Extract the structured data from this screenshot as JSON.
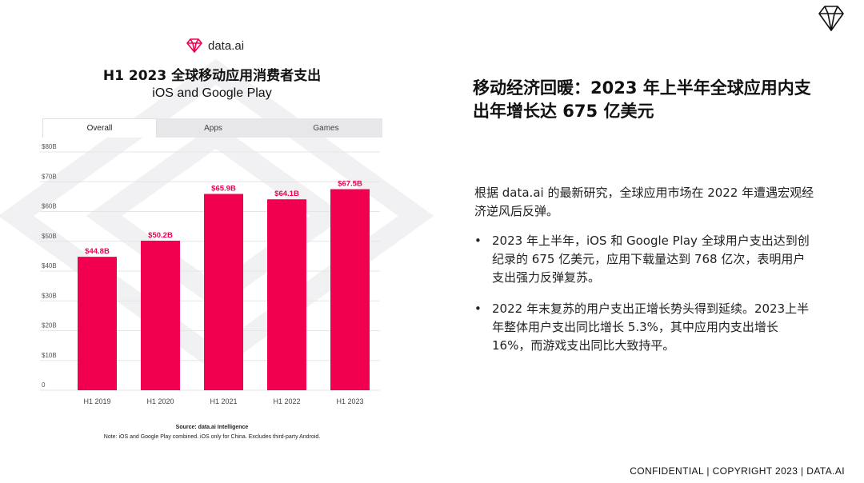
{
  "brand": {
    "name": "data.ai",
    "accent": "#f0004f"
  },
  "chart": {
    "title": "H1 2023 全球移动应用消费者支出",
    "subtitle": "iOS and Google Play",
    "tabs": [
      "Overall",
      "Apps",
      "Games"
    ],
    "active_tab": "Overall",
    "source_line": "Source: data.ai Intelligence",
    "note_line": "Note: iOS and Google Play combined. iOS only for China. Excludes third-party Android."
  },
  "chart_data": {
    "type": "bar",
    "categories": [
      "H1 2019",
      "H1 2020",
      "H1 2021",
      "H1 2022",
      "H1 2023"
    ],
    "values": [
      44.8,
      50.2,
      65.9,
      64.1,
      67.5
    ],
    "data_labels": [
      "$44.8B",
      "$50.2B",
      "$65.9B",
      "$64.1B",
      "$67.5B"
    ],
    "ylim": [
      0,
      80
    ],
    "yticks": [
      0,
      10,
      20,
      30,
      40,
      50,
      60,
      70,
      80
    ],
    "ytick_labels": [
      "0",
      "$10B",
      "$20B",
      "$30B",
      "$40B",
      "$50B",
      "$60B",
      "$70B",
      "$80B"
    ],
    "unit": "billion USD",
    "grid": true,
    "color": "#f0004f"
  },
  "headline": "移动经济回暖：2023  年上半年全球应用内支出年增长达 675 亿美元",
  "intro": "根据 data.ai 的最新研究，全球应用市场在 2022 年遭遇宏观经济逆风后反弹。",
  "bullets": [
    "2023 年上半年，iOS 和 Google Play 全球用户支出达到创纪录的 675 亿美元，应用下载量达到 768 亿次，表明用户支出强力反弹复苏。",
    "2022     年末复苏的用户支出正增长势头得到延续。2023上半年整体用户支出同比增长    5.3%，其中应用内支出增长 16%，而游戏支出同比大致持平。"
  ],
  "bullet_marker": "•",
  "footer": "CONFIDENTIAL  |  COPYRIGHT 2023  |  DATA.AI"
}
